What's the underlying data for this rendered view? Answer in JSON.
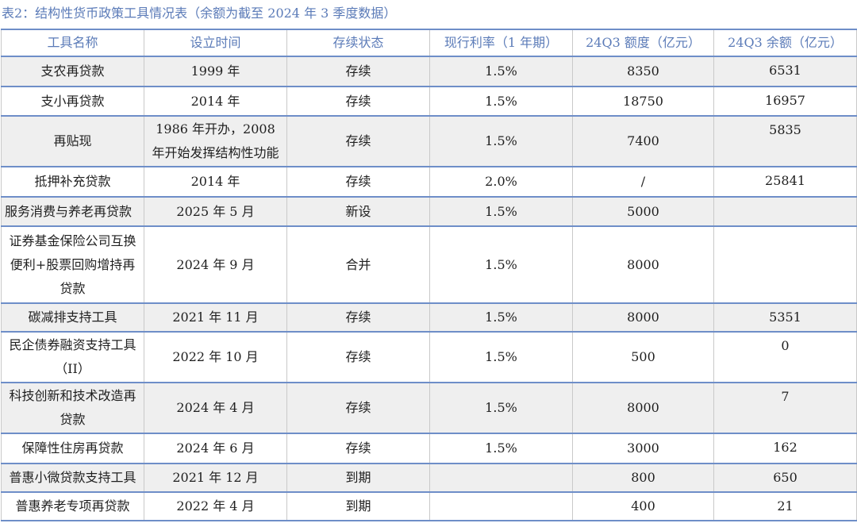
{
  "caption": "表2：结构性货币政策工具情况表（余额为截至 2024 年 3 季度数据）",
  "headers": [
    "工具名称",
    "设立时间",
    "存续状态",
    "现行利率（1 年期）",
    "24Q3 额度（亿元）",
    "24Q3 余额（亿元）"
  ],
  "rows": [
    {
      "name": "支农再贷款",
      "date": "1999 年",
      "status": "存续",
      "rate": "1.5%",
      "quota": "8350",
      "balance": "6531"
    },
    {
      "name": "支小再贷款",
      "date": "2014 年",
      "status": "存续",
      "rate": "1.5%",
      "quota": "18750",
      "balance": "16957"
    },
    {
      "name": "再贴现",
      "date": "1986 年开办，2008 年开始发挥结构性功能",
      "status": "存续",
      "rate": "1.5%",
      "quota": "7400",
      "balance": "5835"
    },
    {
      "name": "抵押补充贷款",
      "date": "2014 年",
      "status": "存续",
      "rate": "2.0%",
      "quota": "/",
      "balance": "25841"
    },
    {
      "name": "服务消费与养老再贷款",
      "date": "2025 年 5 月",
      "status": "新设",
      "rate": "1.5%",
      "quota": "5000",
      "balance": ""
    },
    {
      "name": "证券基金保险公司互换便利+股票回购增持再贷款",
      "date": "2024 年 9 月",
      "status": "合并",
      "rate": "1.5%",
      "quota": "8000",
      "balance": ""
    },
    {
      "name": "碳减排支持工具",
      "date": "2021 年 11 月",
      "status": "存续",
      "rate": "1.5%",
      "quota": "8000",
      "balance": "5351"
    },
    {
      "name": "民企债券融资支持工具（II）",
      "date": "2022 年 10 月",
      "status": "存续",
      "rate": "1.5%",
      "quota": "500",
      "balance": "0"
    },
    {
      "name": "科技创新和技术改造再贷款",
      "date": "2024 年 4 月",
      "status": "存续",
      "rate": "1.5%",
      "quota": "8000",
      "balance": "7"
    },
    {
      "name": "保障性住房再贷款",
      "date": "2024 年 6 月",
      "status": "存续",
      "rate": "1.5%",
      "quota": "3000",
      "balance": "162"
    },
    {
      "name": "普惠小微贷款支持工具",
      "date": "2021 年 12 月",
      "status": "到期",
      "rate": "",
      "quota": "800",
      "balance": "650"
    },
    {
      "name": "普惠养老专项再贷款",
      "date": "2022 年 4 月",
      "status": "到期",
      "rate": "",
      "quota": "400",
      "balance": "21"
    }
  ]
}
